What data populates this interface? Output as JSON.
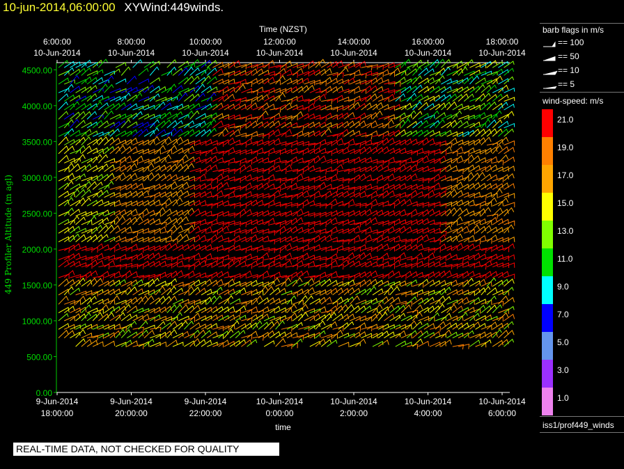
{
  "header": {
    "datetime": "10-jun-2014,06:00:00",
    "title": "XYWind:449winds."
  },
  "chart_data": {
    "type": "wind-barb",
    "top_axis": {
      "label": "Time (NZST)",
      "ticks": [
        {
          "time": "6:00:00",
          "date": "10-Jun-2014"
        },
        {
          "time": "8:00:00",
          "date": "10-Jun-2014"
        },
        {
          "time": "10:00:00",
          "date": "10-Jun-2014"
        },
        {
          "time": "12:00:00",
          "date": "10-Jun-2014"
        },
        {
          "time": "14:00:00",
          "date": "10-Jun-2014"
        },
        {
          "time": "16:00:00",
          "date": "10-Jun-2014"
        },
        {
          "time": "18:00:00",
          "date": "10-Jun-2014"
        }
      ]
    },
    "x_axis": {
      "label": "time",
      "ticks": [
        {
          "date": "9-Jun-2014",
          "time": "18:00:00"
        },
        {
          "date": "9-Jun-2014",
          "time": "20:00:00"
        },
        {
          "date": "9-Jun-2014",
          "time": "22:00:00"
        },
        {
          "date": "10-Jun-2014",
          "time": "0:00:00"
        },
        {
          "date": "10-Jun-2014",
          "time": "2:00:00"
        },
        {
          "date": "10-Jun-2014",
          "time": "4:00:00"
        },
        {
          "date": "10-Jun-2014",
          "time": "6:00:00"
        }
      ]
    },
    "y_axis": {
      "label": "449 Profiler Altitude (m agl)",
      "ylim": [
        0,
        4600
      ],
      "ticks": [
        "0.00",
        "500.00",
        "1000.00",
        "1500.00",
        "2000.00",
        "2500.00",
        "3000.00",
        "3500.00",
        "4000.00",
        "4500.00"
      ]
    },
    "range_gate_altitudes_m": [
      640,
      760,
      880,
      1000,
      1110,
      1230,
      1360,
      1480,
      1600,
      1750,
      1850,
      1980,
      2100,
      2220,
      2340,
      2460,
      2600,
      2720,
      2830,
      2950,
      3080,
      3200,
      3330,
      3450,
      3570,
      3690,
      3810,
      3940,
      4060,
      4180,
      4300,
      4420,
      4530
    ],
    "color_scale": {
      "title": "wind-speed: m/s",
      "entries": [
        {
          "label": "21.0",
          "color": "#ff0000"
        },
        {
          "label": "19.0",
          "color": "#ff8000"
        },
        {
          "label": "17.0",
          "color": "#ffa500"
        },
        {
          "label": "15.0",
          "color": "#ffff00"
        },
        {
          "label": "13.0",
          "color": "#80ff00"
        },
        {
          "label": "11.0",
          "color": "#00e000"
        },
        {
          "label": "9.0",
          "color": "#00ffff"
        },
        {
          "label": "7.0",
          "color": "#0000ff"
        },
        {
          "label": "5.0",
          "color": "#6495ed"
        },
        {
          "label": "3.0",
          "color": "#9b30ff"
        },
        {
          "label": "1.0",
          "color": "#ee82ee"
        }
      ]
    }
  },
  "barb_legend": {
    "title": "barb flags in m/s",
    "items": [
      "== 100",
      "== 50",
      "== 10",
      "== 5"
    ]
  },
  "source_label": "iss1/prof449_winds",
  "notice": "REAL-TIME DATA, NOT CHECKED FOR QUALITY"
}
